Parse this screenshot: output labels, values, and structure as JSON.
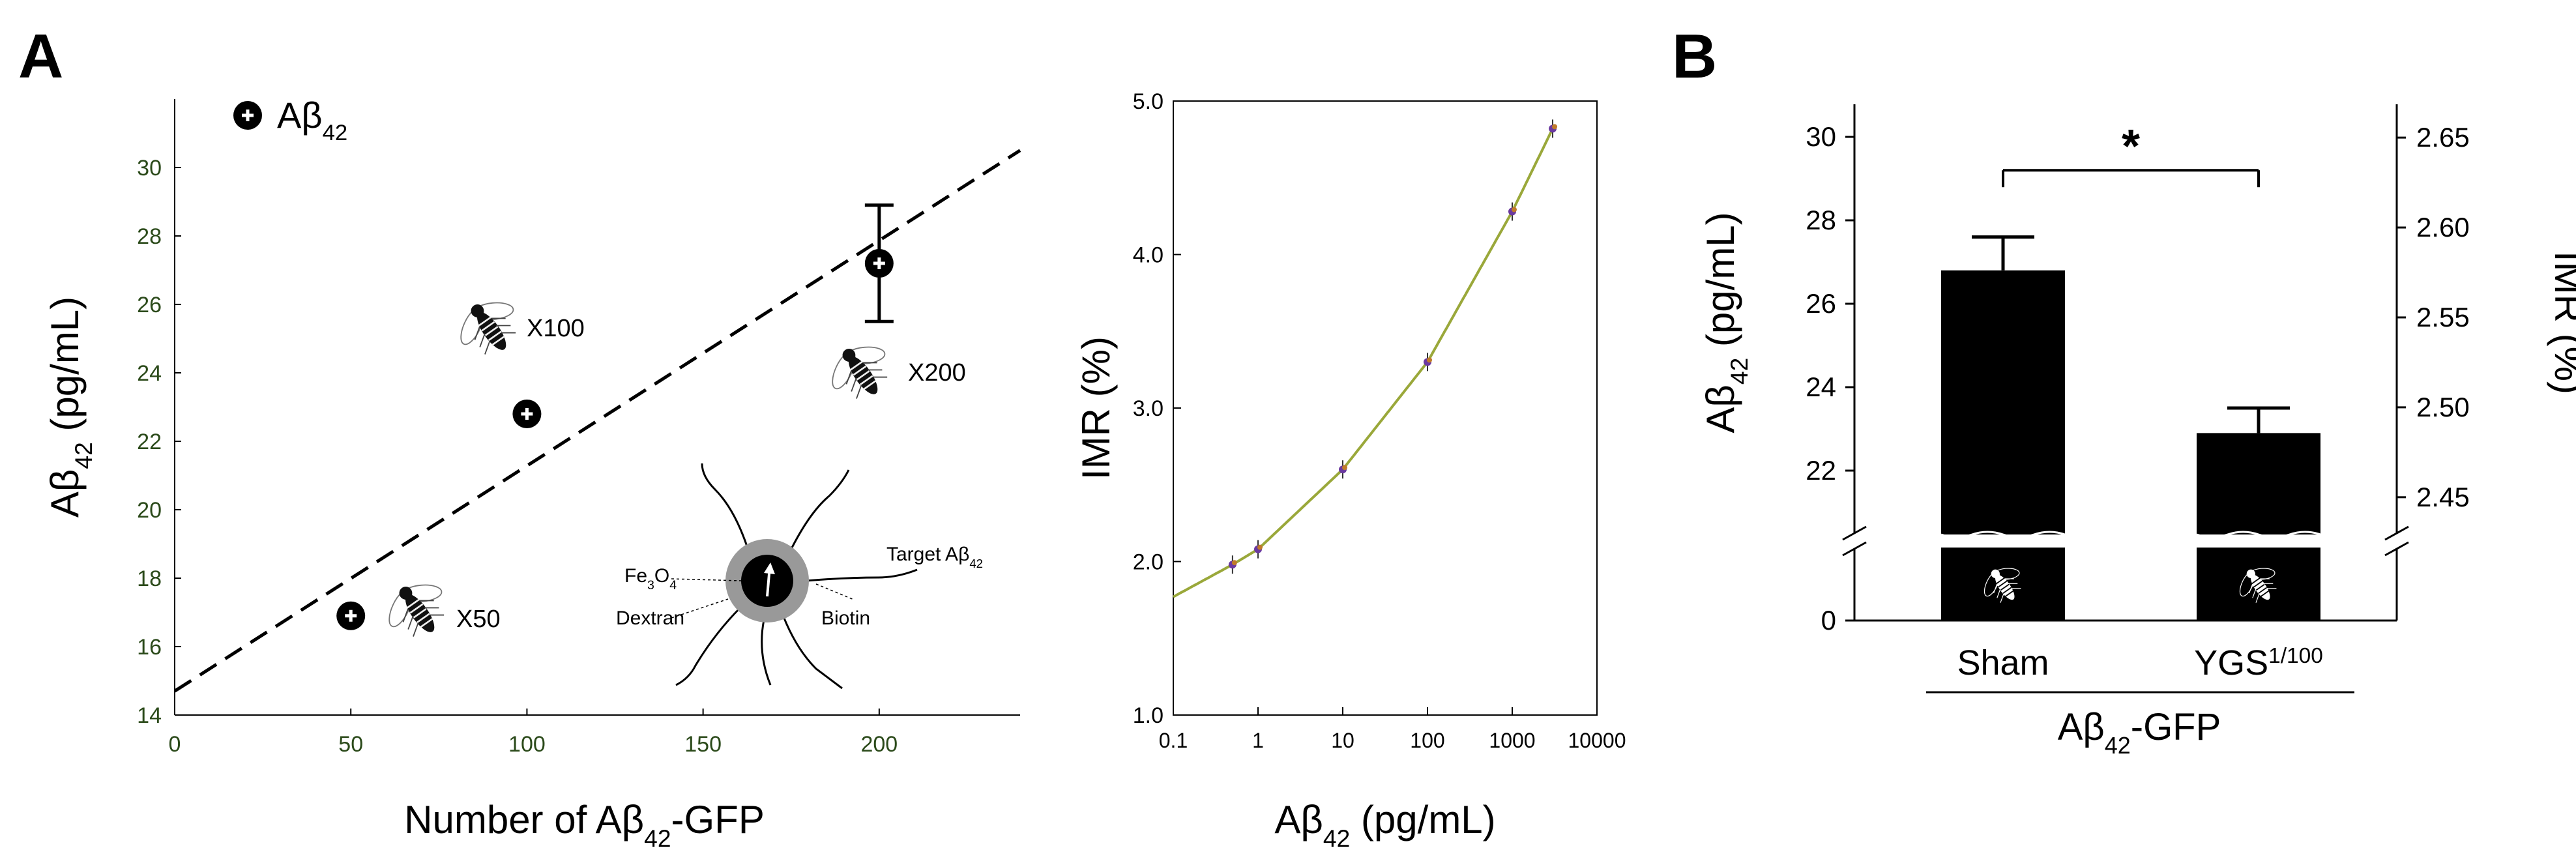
{
  "panel_labels": {
    "a": "A",
    "b": "B"
  },
  "chart_data": [
    {
      "type": "scatter",
      "id": "scatter",
      "xlabel": "Number of Aβ42-GFP",
      "ylabel": "Aβ42 (pg/mL)",
      "xlim": [
        0,
        240
      ],
      "ylim": [
        14,
        32
      ],
      "xticks": [
        0,
        50,
        100,
        150,
        200
      ],
      "yticks": [
        14,
        16,
        18,
        20,
        22,
        24,
        26,
        28,
        30
      ],
      "tick_color": "#2b4a1a",
      "legend": {
        "label": "Aβ42",
        "position": "top-left"
      },
      "series": [
        {
          "name": "Aβ42",
          "points": [
            {
              "x": 50,
              "y": 16.9,
              "err": 0
            },
            {
              "x": 100,
              "y": 22.8,
              "err": 0
            },
            {
              "x": 200,
              "y": 27.2,
              "err": 1.7
            }
          ]
        }
      ],
      "fit_line": {
        "style": "dashed",
        "x": [
          0,
          240
        ],
        "y": [
          14.7,
          30.5
        ]
      },
      "fly_labels": [
        "X50",
        "X100",
        "X200"
      ],
      "particle_labels": {
        "core": "Fe3O4",
        "coat": "Dextran",
        "linker": "Biotin",
        "target": "Target Aβ42"
      }
    },
    {
      "type": "line",
      "id": "calibration",
      "xlabel": "Aβ42 (pg/mL)",
      "ylabel": "IMR (%)",
      "x_scale": "log",
      "xlim": [
        0.1,
        10000
      ],
      "ylim": [
        1.0,
        5.0
      ],
      "xticks": [
        "0.1",
        "1",
        "10",
        "100",
        "1000",
        "10000"
      ],
      "yticks": [
        "1.0",
        "2.0",
        "3.0",
        "4.0",
        "5.0"
      ],
      "curve_color": "#9aa83a",
      "points": [
        {
          "x": 0.5,
          "y": 1.98
        },
        {
          "x": 1,
          "y": 2.08
        },
        {
          "x": 10,
          "y": 2.6
        },
        {
          "x": 100,
          "y": 3.3
        },
        {
          "x": 1000,
          "y": 4.28
        },
        {
          "x": 3000,
          "y": 4.82
        }
      ]
    },
    {
      "type": "bar",
      "id": "bars",
      "ylabel_left": "Aβ42 (pg/mL)",
      "ylabel_right": "IMR (%)",
      "y_left_ticks": [
        "0",
        "22",
        "24",
        "26",
        "28",
        "30"
      ],
      "y_right_ticks": [
        "2.45",
        "2.50",
        "2.55",
        "2.60",
        "2.65"
      ],
      "y_axis_break": true,
      "categories": [
        "Sham",
        "YGS1/100"
      ],
      "group_label": "Aβ42-GFP",
      "values": [
        26.8,
        22.9
      ],
      "errors": [
        0.8,
        0.6
      ],
      "significance": "*"
    }
  ]
}
